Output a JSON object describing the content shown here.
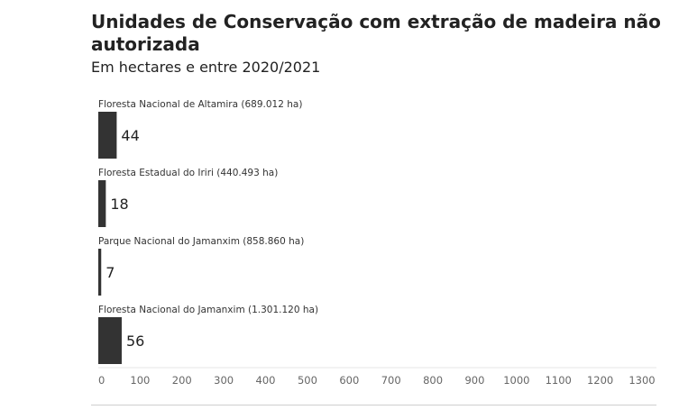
{
  "chart_data": {
    "type": "bar",
    "orientation": "horizontal",
    "title": "Unidades de Conservação com extração de madeira não autorizada",
    "subtitle": "Em hectares e entre 2020/2021",
    "categories": [
      "Floresta Nacional de Altamira (689.012 ha)",
      "Floresta Estadual do Iriri (440.493 ha)",
      "Parque Nacional do Jamanxim (858.860 ha)",
      "Floresta Nacional do Jamanxim (1.301.120 ha)"
    ],
    "values": [
      44,
      18,
      7,
      56
    ],
    "value_labels": [
      "44",
      "18",
      "7",
      "56"
    ],
    "xlim": [
      0,
      1300
    ],
    "xticks": [
      0,
      100,
      200,
      300,
      400,
      500,
      600,
      700,
      800,
      900,
      1000,
      1100,
      1200,
      1300
    ],
    "xtick_labels": [
      "0",
      "100",
      "200",
      "300",
      "400",
      "500",
      "600",
      "700",
      "800",
      "900",
      "1000",
      "1100",
      "1200",
      "1300"
    ],
    "bar_color": "#333333",
    "grid": false
  }
}
